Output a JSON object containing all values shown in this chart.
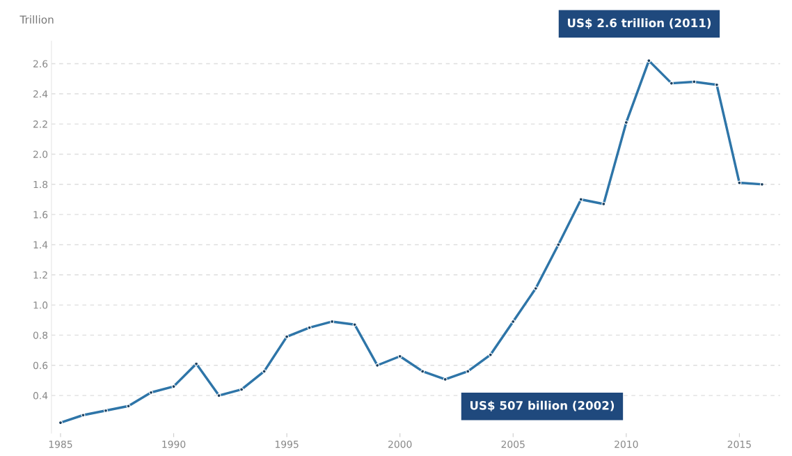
{
  "chart_data": {
    "type": "line",
    "ylabel": "Trillion",
    "x": [
      1985,
      1986,
      1987,
      1988,
      1989,
      1990,
      1991,
      1992,
      1993,
      1994,
      1995,
      1996,
      1997,
      1998,
      1999,
      2000,
      2001,
      2002,
      2003,
      2004,
      2005,
      2006,
      2007,
      2008,
      2009,
      2010,
      2011,
      2012,
      2013,
      2014,
      2015,
      2016
    ],
    "series": [
      {
        "color": "#2e75a8",
        "values": [
          0.22,
          0.27,
          0.3,
          0.33,
          0.42,
          0.46,
          0.61,
          0.4,
          0.44,
          0.56,
          0.79,
          0.85,
          0.89,
          0.87,
          0.6,
          0.66,
          0.56,
          0.507,
          0.56,
          0.67,
          0.89,
          1.11,
          1.4,
          1.7,
          1.67,
          2.21,
          2.62,
          2.47,
          2.48,
          2.46,
          1.81,
          1.8
        ]
      }
    ],
    "xlim": [
      1984.6,
      2016.8
    ],
    "ylim": [
      0.15,
      2.75
    ],
    "xticks": [
      1985,
      1990,
      1995,
      2000,
      2005,
      2010,
      2015
    ],
    "yticks": [
      0.4,
      0.6,
      0.8,
      {
        "value": 1,
        "label": "1.0"
      },
      1.2,
      1.4,
      1.6,
      1.8,
      {
        "value": 2,
        "label": "2.0"
      },
      2.2,
      2.4,
      2.6
    ],
    "grid": "y",
    "marker": "circle",
    "line_style": "solid",
    "annotations": [
      {
        "text": "US$ 2.6 trillion (2011)",
        "x": 2011,
        "y": 2.62
      },
      {
        "text": "US$ 507 billion (2002)",
        "x": 2002,
        "y": 0.507
      }
    ]
  }
}
